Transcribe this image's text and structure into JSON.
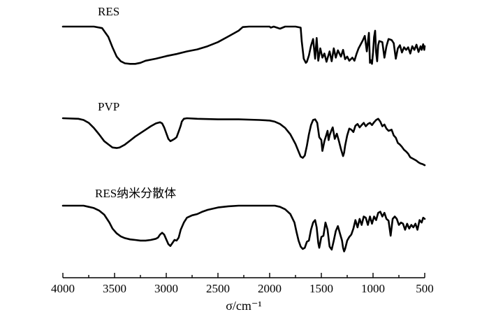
{
  "chart_data": {
    "type": "line",
    "title": "",
    "xlabel": "σ/cm⁻¹",
    "ylabel": "",
    "xlim": [
      4000,
      500
    ],
    "x_reversed": true,
    "y_axis_shown": false,
    "grid": false,
    "line_color": "#000000",
    "xticks": [
      "4000",
      "3500",
      "3000",
      "2500",
      "2000",
      "1500",
      "1000",
      "500"
    ],
    "series": [
      {
        "name": "RES",
        "points": [
          [
            4000,
            0
          ],
          [
            3700,
            0
          ],
          [
            3620,
            3
          ],
          [
            3560,
            20
          ],
          [
            3520,
            40
          ],
          [
            3480,
            58
          ],
          [
            3440,
            67
          ],
          [
            3400,
            71
          ],
          [
            3350,
            72
          ],
          [
            3300,
            72
          ],
          [
            3250,
            70
          ],
          [
            3200,
            66
          ],
          [
            3100,
            62
          ],
          [
            3000,
            57
          ],
          [
            2900,
            53
          ],
          [
            2800,
            48
          ],
          [
            2700,
            44
          ],
          [
            2600,
            38
          ],
          [
            2500,
            30
          ],
          [
            2400,
            19
          ],
          [
            2300,
            8
          ],
          [
            2260,
            1
          ],
          [
            2200,
            0
          ],
          [
            2000,
            0
          ],
          [
            1990,
            2
          ],
          [
            1960,
            0
          ],
          [
            1900,
            4
          ],
          [
            1850,
            0
          ],
          [
            1750,
            0
          ],
          [
            1700,
            2
          ],
          [
            1690,
            28
          ],
          [
            1670,
            62
          ],
          [
            1650,
            70
          ],
          [
            1640,
            68
          ],
          [
            1620,
            56
          ],
          [
            1600,
            37
          ],
          [
            1580,
            24
          ],
          [
            1560,
            62
          ],
          [
            1545,
            22
          ],
          [
            1530,
            66
          ],
          [
            1510,
            42
          ],
          [
            1490,
            60
          ],
          [
            1470,
            52
          ],
          [
            1450,
            68
          ],
          [
            1420,
            48
          ],
          [
            1400,
            67
          ],
          [
            1380,
            42
          ],
          [
            1360,
            60
          ],
          [
            1340,
            46
          ],
          [
            1310,
            58
          ],
          [
            1290,
            45
          ],
          [
            1270,
            63
          ],
          [
            1250,
            58
          ],
          [
            1230,
            66
          ],
          [
            1200,
            60
          ],
          [
            1180,
            66
          ],
          [
            1160,
            53
          ],
          [
            1140,
            42
          ],
          [
            1100,
            27
          ],
          [
            1080,
            18
          ],
          [
            1060,
            48
          ],
          [
            1040,
            12
          ],
          [
            1030,
            70
          ],
          [
            1020,
            65
          ],
          [
            1010,
            72
          ],
          [
            1000,
            50
          ],
          [
            990,
            20
          ],
          [
            980,
            8
          ],
          [
            970,
            50
          ],
          [
            960,
            67
          ],
          [
            950,
            36
          ],
          [
            940,
            28
          ],
          [
            910,
            30
          ],
          [
            890,
            60
          ],
          [
            870,
            38
          ],
          [
            850,
            24
          ],
          [
            820,
            26
          ],
          [
            800,
            32
          ],
          [
            780,
            62
          ],
          [
            760,
            42
          ],
          [
            740,
            36
          ],
          [
            720,
            50
          ],
          [
            700,
            40
          ],
          [
            680,
            45
          ],
          [
            660,
            40
          ],
          [
            640,
            52
          ],
          [
            620,
            38
          ],
          [
            600,
            45
          ],
          [
            580,
            35
          ],
          [
            560,
            49
          ],
          [
            540,
            38
          ],
          [
            530,
            45
          ],
          [
            515,
            34
          ],
          [
            505,
            45
          ],
          [
            500,
            38
          ]
        ]
      },
      {
        "name": "PVP",
        "points": [
          [
            4000,
            0
          ],
          [
            3850,
            1
          ],
          [
            3800,
            3
          ],
          [
            3750,
            8
          ],
          [
            3700,
            17
          ],
          [
            3650,
            28
          ],
          [
            3600,
            40
          ],
          [
            3550,
            47
          ],
          [
            3520,
            51
          ],
          [
            3480,
            52
          ],
          [
            3450,
            51
          ],
          [
            3400,
            46
          ],
          [
            3350,
            39
          ],
          [
            3300,
            32
          ],
          [
            3250,
            26
          ],
          [
            3200,
            20
          ],
          [
            3150,
            14
          ],
          [
            3100,
            9
          ],
          [
            3060,
            7
          ],
          [
            3040,
            9
          ],
          [
            3020,
            16
          ],
          [
            3000,
            26
          ],
          [
            2980,
            36
          ],
          [
            2960,
            40
          ],
          [
            2940,
            38
          ],
          [
            2920,
            36
          ],
          [
            2900,
            33
          ],
          [
            2880,
            23
          ],
          [
            2860,
            13
          ],
          [
            2850,
            6
          ],
          [
            2830,
            1
          ],
          [
            2800,
            0
          ],
          [
            2700,
            1
          ],
          [
            2500,
            2
          ],
          [
            2300,
            2
          ],
          [
            2100,
            3
          ],
          [
            2000,
            4
          ],
          [
            1950,
            6
          ],
          [
            1900,
            10
          ],
          [
            1850,
            17
          ],
          [
            1800,
            28
          ],
          [
            1750,
            45
          ],
          [
            1720,
            58
          ],
          [
            1700,
            67
          ],
          [
            1680,
            69
          ],
          [
            1660,
            65
          ],
          [
            1640,
            48
          ],
          [
            1620,
            28
          ],
          [
            1600,
            12
          ],
          [
            1580,
            3
          ],
          [
            1560,
            2
          ],
          [
            1540,
            8
          ],
          [
            1520,
            33
          ],
          [
            1500,
            38
          ],
          [
            1490,
            57
          ],
          [
            1470,
            40
          ],
          [
            1450,
            28
          ],
          [
            1440,
            22
          ],
          [
            1430,
            38
          ],
          [
            1420,
            30
          ],
          [
            1400,
            20
          ],
          [
            1390,
            16
          ],
          [
            1370,
            36
          ],
          [
            1350,
            27
          ],
          [
            1330,
            40
          ],
          [
            1310,
            54
          ],
          [
            1290,
            66
          ],
          [
            1280,
            60
          ],
          [
            1270,
            48
          ],
          [
            1250,
            30
          ],
          [
            1230,
            18
          ],
          [
            1210,
            20
          ],
          [
            1190,
            24
          ],
          [
            1170,
            13
          ],
          [
            1150,
            10
          ],
          [
            1130,
            16
          ],
          [
            1110,
            12
          ],
          [
            1090,
            8
          ],
          [
            1070,
            14
          ],
          [
            1050,
            10
          ],
          [
            1030,
            8
          ],
          [
            1010,
            12
          ],
          [
            990,
            7
          ],
          [
            970,
            3
          ],
          [
            950,
            1
          ],
          [
            930,
            6
          ],
          [
            910,
            14
          ],
          [
            890,
            11
          ],
          [
            870,
            18
          ],
          [
            850,
            22
          ],
          [
            820,
            20
          ],
          [
            800,
            30
          ],
          [
            780,
            34
          ],
          [
            760,
            43
          ],
          [
            740,
            46
          ],
          [
            720,
            50
          ],
          [
            700,
            55
          ],
          [
            680,
            58
          ],
          [
            660,
            62
          ],
          [
            640,
            68
          ],
          [
            620,
            70
          ],
          [
            600,
            72
          ],
          [
            580,
            74
          ],
          [
            560,
            77
          ],
          [
            540,
            79
          ],
          [
            520,
            80
          ],
          [
            500,
            82
          ]
        ]
      },
      {
        "name": "RES纳米分散体",
        "points": [
          [
            4000,
            0
          ],
          [
            3800,
            0
          ],
          [
            3750,
            2
          ],
          [
            3700,
            4
          ],
          [
            3650,
            8
          ],
          [
            3600,
            15
          ],
          [
            3550,
            28
          ],
          [
            3520,
            38
          ],
          [
            3480,
            46
          ],
          [
            3440,
            51
          ],
          [
            3400,
            54
          ],
          [
            3350,
            56
          ],
          [
            3300,
            57
          ],
          [
            3250,
            58
          ],
          [
            3200,
            58
          ],
          [
            3150,
            57
          ],
          [
            3100,
            55
          ],
          [
            3080,
            53
          ],
          [
            3060,
            48
          ],
          [
            3040,
            45
          ],
          [
            3020,
            48
          ],
          [
            3000,
            56
          ],
          [
            2980,
            64
          ],
          [
            2960,
            67
          ],
          [
            2940,
            62
          ],
          [
            2920,
            57
          ],
          [
            2900,
            58
          ],
          [
            2880,
            53
          ],
          [
            2860,
            40
          ],
          [
            2830,
            28
          ],
          [
            2800,
            20
          ],
          [
            2750,
            16
          ],
          [
            2700,
            14
          ],
          [
            2650,
            10
          ],
          [
            2600,
            7
          ],
          [
            2500,
            3
          ],
          [
            2400,
            1
          ],
          [
            2300,
            0
          ],
          [
            2100,
            0
          ],
          [
            1950,
            0
          ],
          [
            1900,
            2
          ],
          [
            1850,
            6
          ],
          [
            1800,
            14
          ],
          [
            1760,
            28
          ],
          [
            1740,
            44
          ],
          [
            1720,
            58
          ],
          [
            1700,
            68
          ],
          [
            1680,
            72
          ],
          [
            1660,
            70
          ],
          [
            1640,
            60
          ],
          [
            1620,
            58
          ],
          [
            1600,
            40
          ],
          [
            1580,
            28
          ],
          [
            1560,
            24
          ],
          [
            1545,
            36
          ],
          [
            1530,
            62
          ],
          [
            1520,
            70
          ],
          [
            1500,
            52
          ],
          [
            1480,
            50
          ],
          [
            1460,
            28
          ],
          [
            1440,
            40
          ],
          [
            1420,
            68
          ],
          [
            1400,
            73
          ],
          [
            1380,
            58
          ],
          [
            1360,
            42
          ],
          [
            1340,
            34
          ],
          [
            1320,
            46
          ],
          [
            1300,
            58
          ],
          [
            1290,
            70
          ],
          [
            1280,
            76
          ],
          [
            1270,
            72
          ],
          [
            1250,
            58
          ],
          [
            1230,
            52
          ],
          [
            1210,
            48
          ],
          [
            1190,
            38
          ],
          [
            1170,
            24
          ],
          [
            1150,
            36
          ],
          [
            1130,
            22
          ],
          [
            1110,
            32
          ],
          [
            1090,
            18
          ],
          [
            1070,
            20
          ],
          [
            1050,
            32
          ],
          [
            1030,
            18
          ],
          [
            1010,
            30
          ],
          [
            990,
            18
          ],
          [
            970,
            24
          ],
          [
            950,
            12
          ],
          [
            930,
            10
          ],
          [
            910,
            18
          ],
          [
            890,
            12
          ],
          [
            870,
            22
          ],
          [
            850,
            25
          ],
          [
            830,
            50
          ],
          [
            810,
            22
          ],
          [
            790,
            18
          ],
          [
            770,
            22
          ],
          [
            750,
            32
          ],
          [
            730,
            28
          ],
          [
            710,
            30
          ],
          [
            690,
            40
          ],
          [
            670,
            30
          ],
          [
            650,
            38
          ],
          [
            630,
            32
          ],
          [
            610,
            36
          ],
          [
            590,
            30
          ],
          [
            570,
            40
          ],
          [
            550,
            24
          ],
          [
            530,
            28
          ],
          [
            515,
            20
          ],
          [
            500,
            22
          ]
        ]
      }
    ]
  }
}
